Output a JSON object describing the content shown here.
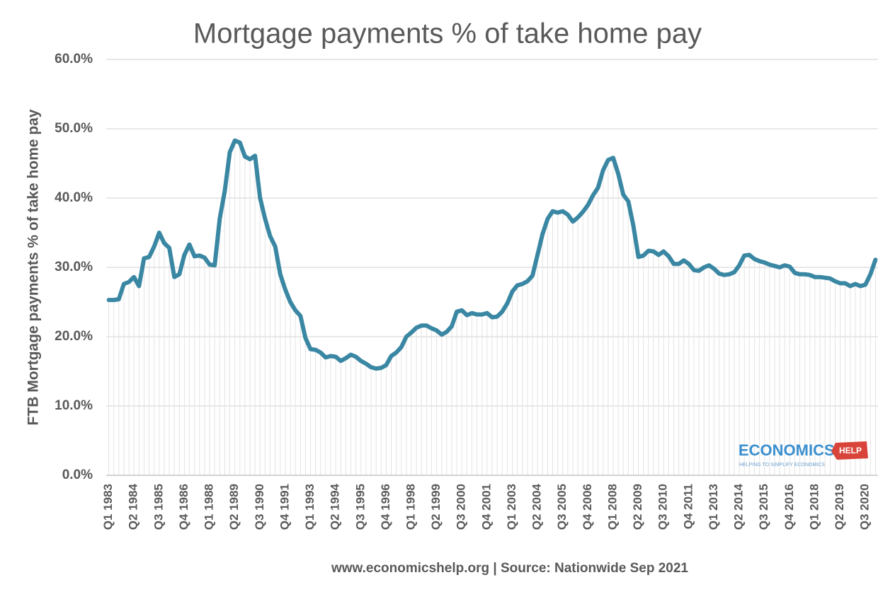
{
  "chart_data": {
    "type": "line",
    "title": "Mortgage payments % of take home pay",
    "y_label": "FTB Mortgage payments % of take home pay",
    "source": "www.economicshelp.org | Source: Nationwide Sep 2021",
    "color": "#3a87a3",
    "grid": true,
    "ylim": [
      0,
      60
    ],
    "yticks": [
      {
        "value": 0,
        "label": "0.0%"
      },
      {
        "value": 10,
        "label": "10.0%"
      },
      {
        "value": 20,
        "label": "20.0%"
      },
      {
        "value": 30,
        "label": "30.0%"
      },
      {
        "value": 40,
        "label": "40.0%"
      },
      {
        "value": 50,
        "label": "50.0%"
      },
      {
        "value": 60,
        "label": "60.0%"
      }
    ],
    "categories": [
      "Q1 1983",
      null,
      null,
      null,
      null,
      "Q2 1984",
      null,
      null,
      null,
      null,
      "Q3 1985",
      null,
      null,
      null,
      null,
      "Q4 1986",
      null,
      null,
      null,
      null,
      "Q1 1988",
      null,
      null,
      null,
      null,
      "Q2 1989",
      null,
      null,
      null,
      null,
      "Q3 1990",
      null,
      null,
      null,
      null,
      "Q4 1991",
      null,
      null,
      null,
      null,
      "Q1 1993",
      null,
      null,
      null,
      null,
      "Q2 1994",
      null,
      null,
      null,
      null,
      "Q3 1995",
      null,
      null,
      null,
      null,
      "Q4 1996",
      null,
      null,
      null,
      null,
      "Q1 1998",
      null,
      null,
      null,
      null,
      "Q2 1999",
      null,
      null,
      null,
      null,
      "Q3 2000",
      null,
      null,
      null,
      null,
      "Q4 2001",
      null,
      null,
      null,
      null,
      "Q1 2003",
      null,
      null,
      null,
      null,
      "Q2 2004",
      null,
      null,
      null,
      null,
      "Q3 2005",
      null,
      null,
      null,
      null,
      "Q4 2006",
      null,
      null,
      null,
      null,
      "Q1 2008",
      null,
      null,
      null,
      null,
      "Q2 2009",
      null,
      null,
      null,
      null,
      "Q3 2010",
      null,
      null,
      null,
      null,
      "Q4 2011",
      null,
      null,
      null,
      null,
      "Q1 2013",
      null,
      null,
      null,
      null,
      "Q2 2014",
      null,
      null,
      null,
      null,
      "Q3 2015",
      null,
      null,
      null,
      null,
      "Q4 2016",
      null,
      null,
      null,
      null,
      "Q1 2018",
      null,
      null,
      null,
      null,
      "Q2 2019",
      null,
      null,
      null,
      null,
      "Q3 2020",
      null,
      null
    ],
    "values": [
      25.3,
      25.3,
      25.4,
      27.6,
      27.9,
      28.6,
      27.3,
      31.3,
      31.5,
      33.0,
      35.0,
      33.5,
      32.8,
      28.6,
      29.0,
      31.8,
      33.3,
      31.6,
      31.7,
      31.4,
      30.4,
      30.3,
      37.0,
      41.0,
      46.6,
      48.3,
      48.0,
      46.0,
      45.6,
      46.1,
      40.0,
      37.0,
      34.5,
      33.0,
      29.0,
      26.8,
      25.0,
      23.8,
      23.0,
      19.8,
      18.2,
      18.1,
      17.7,
      17.0,
      17.2,
      17.1,
      16.5,
      16.9,
      17.4,
      17.1,
      16.5,
      16.1,
      15.6,
      15.4,
      15.5,
      15.9,
      17.2,
      17.7,
      18.5,
      20.0,
      20.6,
      21.3,
      21.6,
      21.6,
      21.2,
      20.9,
      20.3,
      20.7,
      21.5,
      23.6,
      23.8,
      23.1,
      23.4,
      23.2,
      23.2,
      23.4,
      22.8,
      22.9,
      23.6,
      24.8,
      26.5,
      27.4,
      27.6,
      28.0,
      28.8,
      31.8,
      34.8,
      37.0,
      38.1,
      37.9,
      38.1,
      37.6,
      36.6,
      37.2,
      38.0,
      39.0,
      40.4,
      41.5,
      44.0,
      45.5,
      45.8,
      43.5,
      40.5,
      39.5,
      36.0,
      31.5,
      31.7,
      32.4,
      32.3,
      31.8,
      32.3,
      31.6,
      30.5,
      30.5,
      31.0,
      30.5,
      29.6,
      29.5,
      30.0,
      30.3,
      29.8,
      29.1,
      28.9,
      29.0,
      29.3,
      30.3,
      31.7,
      31.8,
      31.2,
      30.9,
      30.7,
      30.4,
      30.2,
      30.0,
      30.3,
      30.1,
      29.2,
      29.0,
      29.0,
      28.9,
      28.6,
      28.6,
      28.5,
      28.4,
      28.0,
      27.7,
      27.7,
      27.3,
      27.6,
      27.3,
      27.5,
      29.0,
      31.1
    ]
  },
  "logo": {
    "text": "ECONOMICS",
    "badge": "HELP",
    "tagline": "HELPING TO SIMPLIFY ECONOMICS"
  }
}
